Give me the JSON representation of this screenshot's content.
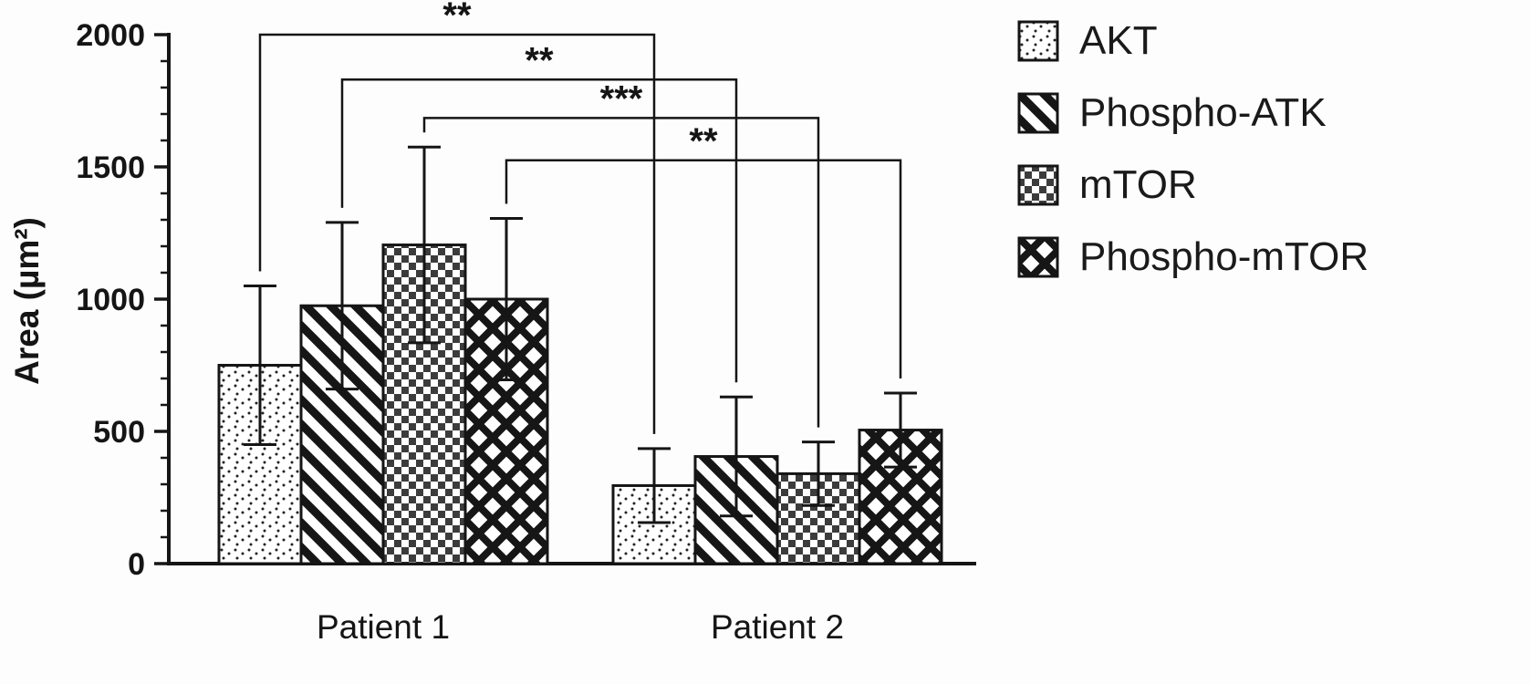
{
  "chart_data": {
    "type": "bar",
    "title": "",
    "xlabel": "",
    "ylabel": "Area (µm²)",
    "ylim": [
      0,
      2000
    ],
    "yticks": [
      0,
      500,
      1000,
      1500,
      2000
    ],
    "minor_tick_step": 100,
    "grid": false,
    "legend_position": "top-right",
    "categories": [
      "Patient 1",
      "Patient 2"
    ],
    "series": [
      {
        "name": "AKT",
        "pattern": "dots",
        "values": [
          750,
          295
        ],
        "errors": [
          300,
          140
        ]
      },
      {
        "name": "Phospho-ATK",
        "pattern": "diagonal-stripes",
        "values": [
          975,
          405
        ],
        "errors": [
          315,
          225
        ]
      },
      {
        "name": "mTOR",
        "pattern": "checkerboard",
        "values": [
          1205,
          340
        ],
        "errors": [
          370,
          120
        ]
      },
      {
        "name": "Phospho-mTOR",
        "pattern": "crosshatch",
        "values": [
          1000,
          505
        ],
        "errors": [
          305,
          140
        ]
      }
    ],
    "significance": [
      {
        "series_index": 0,
        "from_category": 0,
        "to_category": 1,
        "label": "**",
        "bar_height_value": 2000
      },
      {
        "series_index": 1,
        "from_category": 0,
        "to_category": 1,
        "label": "**",
        "bar_height_value": 1830
      },
      {
        "series_index": 2,
        "from_category": 0,
        "to_category": 1,
        "label": "***",
        "bar_height_value": 1685
      },
      {
        "series_index": 3,
        "from_category": 0,
        "to_category": 1,
        "label": "**",
        "bar_height_value": 1525
      }
    ],
    "colors": {
      "stroke": "#151515",
      "bar_background": "#ffffff",
      "text": "#151515"
    }
  }
}
